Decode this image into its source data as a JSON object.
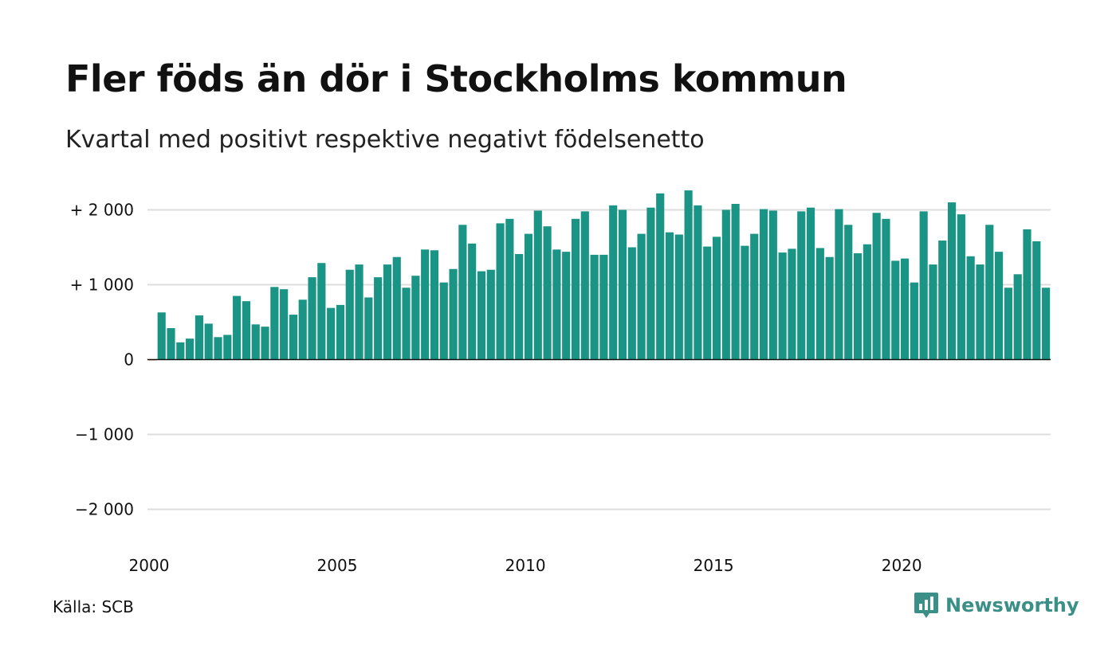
{
  "header": {
    "title": "Fler föds än dör i Stockholms kommun",
    "subtitle": "Kvartal med positivt respektive negativt födelsenetto"
  },
  "footer": {
    "source": "Källa: SCB",
    "brand": "Newsworthy",
    "brand_icon": "chart-speech-bubble-icon"
  },
  "colors": {
    "positive": "#1a9484",
    "negative": "#e07b00",
    "grid": "#dddddd",
    "zero_line": "#111111",
    "brand": "#3a8f86"
  },
  "chart_data": {
    "type": "bar",
    "x_tick_labels": [
      "2000",
      "2005",
      "2010",
      "2015",
      "2020"
    ],
    "y_tick_labels": [
      "+ 2 000",
      "+ 1 000",
      "0",
      "−1 000",
      "−2 000"
    ],
    "y_ticks": [
      2000,
      1000,
      0,
      -1000,
      -2000
    ],
    "ylim": [
      -2500,
      2500
    ],
    "grid": true,
    "start_year": 2000,
    "periods_per_year": 4,
    "values": [
      -10,
      630,
      420,
      230,
      280,
      590,
      480,
      300,
      330,
      850,
      780,
      470,
      440,
      970,
      940,
      600,
      800,
      1100,
      1290,
      690,
      730,
      1200,
      1270,
      830,
      1100,
      1270,
      1370,
      960,
      1120,
      1470,
      1460,
      1030,
      1210,
      1800,
      1550,
      1180,
      1200,
      1820,
      1880,
      1410,
      1680,
      1990,
      1780,
      1470,
      1440,
      1880,
      1980,
      1400,
      1400,
      2060,
      2000,
      1500,
      1680,
      2030,
      2220,
      1700,
      1670,
      2260,
      2060,
      1510,
      1640,
      2000,
      2080,
      1520,
      1680,
      2010,
      1990,
      1430,
      1480,
      1980,
      2030,
      1490,
      1370,
      2010,
      1800,
      1420,
      1540,
      1960,
      1880,
      1320,
      1350,
      1030,
      1980,
      1270,
      1590,
      2100,
      1940,
      1380,
      1270,
      1800,
      1440,
      960,
      1140,
      1740,
      1580,
      960
    ]
  }
}
